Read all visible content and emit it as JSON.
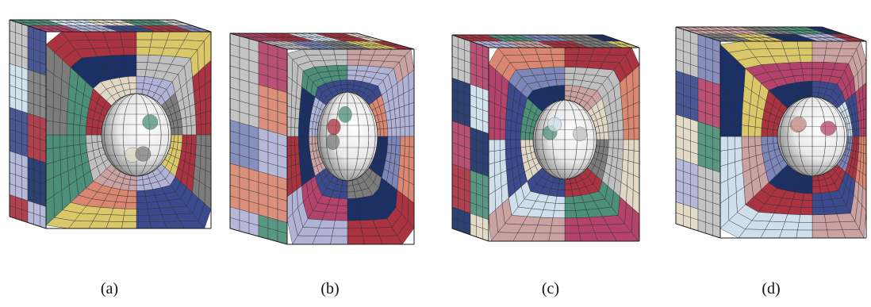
{
  "figure": {
    "panels": [
      {
        "caption": "(a)",
        "variant": "a"
      },
      {
        "caption": "(b)",
        "variant": "b"
      },
      {
        "caption": "(c)",
        "variant": "c"
      },
      {
        "caption": "(d)",
        "variant": "d"
      }
    ],
    "palette": [
      "#1b3066",
      "#d98770",
      "#4d8f79",
      "#bfbfbf",
      "#7c86b8",
      "#a93340",
      "#d9c76a",
      "#cfe0ec",
      "#7c7c7c",
      "#e0d8c4",
      "#b0b3d6",
      "#b3436a",
      "#3a4a8c",
      "#caa2a2"
    ],
    "mesh_edge_color": "#2a2a2a",
    "sphere_color": "#e8e8e8"
  }
}
